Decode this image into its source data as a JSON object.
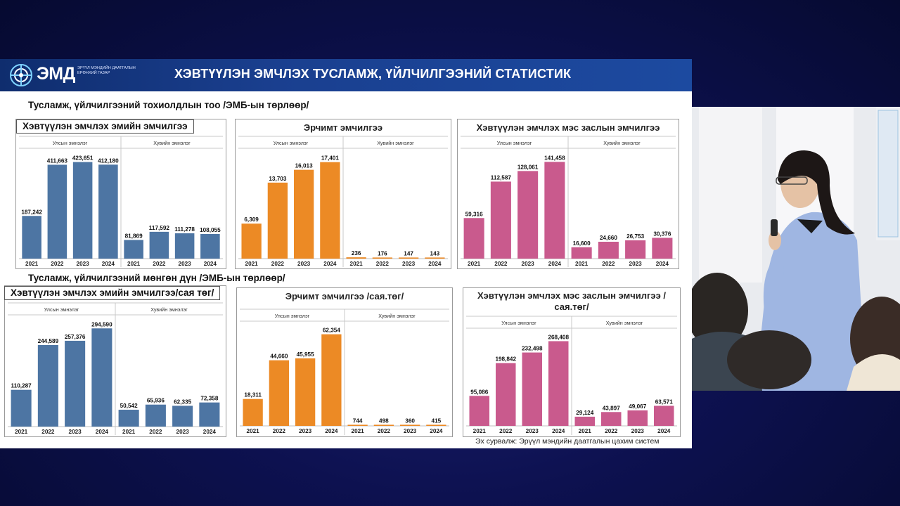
{
  "header": {
    "logo_abbr": "ЭМД",
    "logo_subtitle": "Эрүүл мэндийн даатгалын ерөнхий газар",
    "title": "ХЭВТҮҮЛЭН ЭМЧЛЭХ ТУСЛАМЖ, ҮЙЛЧИЛГЭЭНИЙ СТАТИСТИК"
  },
  "section1_label": "Тусламж, үйлчилгээний тохиолдлын тоо /ЭМБ-ын төрлөөр/",
  "section2_label": "Тусламж, үйлчилгээний мөнгөн дүн /ЭМБ-ын төрлөөр/",
  "source_note": "Эх сурвалж: Эрүүл мэндийн даатгалын цахим систем",
  "colors": {
    "blue": "#4d75a3",
    "orange": "#ec8a25",
    "pink": "#c95a8d",
    "header": "#163a86"
  },
  "chart_data": [
    {
      "type": "bar",
      "title": "Хэвтүүлэн эмчлэх эмийн эмчилгээ",
      "groups": [
        "Улсын эмнэлэг",
        "Хувийн эмнэлэг"
      ],
      "categories": [
        "2021",
        "2022",
        "2023",
        "2024"
      ],
      "series": [
        {
          "name": "Улсын эмнэлэг",
          "values": [
            187242,
            411663,
            423651,
            412180
          ],
          "labels": [
            "187,242",
            "411,663",
            "423,651",
            "412,180"
          ]
        },
        {
          "name": "Хувийн эмнэлэг",
          "values": [
            81869,
            117592,
            111278,
            108055
          ],
          "labels": [
            "81,869",
            "117,592",
            "111,278",
            "108,055"
          ]
        }
      ],
      "ylim": [
        0,
        450000
      ],
      "color": "#4d75a3"
    },
    {
      "type": "bar",
      "title": "Эрчимт эмчилгээ",
      "groups": [
        "Улсын эмнэлэг",
        "Хувийн эмнэлэг"
      ],
      "categories": [
        "2021",
        "2022",
        "2023",
        "2024"
      ],
      "series": [
        {
          "name": "Улсын эмнэлэг",
          "values": [
            6309,
            13703,
            16013,
            17401
          ],
          "labels": [
            "6,309",
            "13,703",
            "16,013",
            "17,401"
          ]
        },
        {
          "name": "Хувийн эмнэлэг",
          "values": [
            236,
            176,
            147,
            143
          ],
          "labels": [
            "236",
            "176",
            "147",
            "143"
          ]
        }
      ],
      "ylim": [
        0,
        18500
      ],
      "color": "#ec8a25"
    },
    {
      "type": "bar",
      "title": "Хэвтүүлэн эмчлэх мэс заслын эмчилгээ",
      "groups": [
        "Улсын эмнэлэг",
        "Хувийн эмнэлэг"
      ],
      "categories": [
        "2021",
        "2022",
        "2023",
        "2024"
      ],
      "series": [
        {
          "name": "Улсын эмнэлэг",
          "values": [
            59316,
            112587,
            128061,
            141458
          ],
          "labels": [
            "59,316",
            "112,587",
            "128,061",
            "141,458"
          ]
        },
        {
          "name": "Хувийн эмнэлэг",
          "values": [
            16600,
            24660,
            26753,
            30376
          ],
          "labels": [
            "16,600",
            "24,660",
            "26,753",
            "30,376"
          ]
        }
      ],
      "ylim": [
        0,
        150000
      ],
      "color": "#c95a8d"
    },
    {
      "type": "bar",
      "title": "Хэвтүүлэн эмчлэх эмийн эмчилгээ/сая төг/",
      "groups": [
        "Улсын эмнэлэг",
        "Хувийн эмнэлэг"
      ],
      "categories": [
        "2021",
        "2022",
        "2023",
        "2024"
      ],
      "series": [
        {
          "name": "Улсын эмнэлэг",
          "values": [
            110287,
            244589,
            257376,
            294590
          ],
          "labels": [
            "110,287",
            "244,589",
            "257,376",
            "294,590"
          ]
        },
        {
          "name": "Хувийн эмнэлэг",
          "values": [
            50542,
            65936,
            62335,
            72358
          ],
          "labels": [
            "50,542",
            "65,936",
            "62,335",
            "72,358"
          ]
        }
      ],
      "ylim": [
        0,
        312000
      ],
      "color": "#4d75a3"
    },
    {
      "type": "bar",
      "title": "Эрчимт эмчилгээ /сая.төг/",
      "groups": [
        "Улсын эмнэлэг",
        "Хувийн эмнэлэг"
      ],
      "categories": [
        "2021",
        "2022",
        "2023",
        "2024"
      ],
      "series": [
        {
          "name": "Улсын эмнэлэг",
          "values": [
            18311,
            44660,
            45955,
            62354
          ],
          "labels": [
            "18,311",
            "44,660",
            "45,955",
            "62,354"
          ]
        },
        {
          "name": "Хувийн эмнэлэг",
          "values": [
            744,
            498,
            360,
            415
          ],
          "labels": [
            "744",
            "498",
            "360",
            "415"
          ]
        }
      ],
      "ylim": [
        0,
        66000
      ],
      "color": "#ec8a25"
    },
    {
      "type": "bar",
      "title": "Хэвтүүлэн эмчлэх мэс заслын эмчилгээ /сая.төг/",
      "groups": [
        "Улсын эмнэлэг",
        "Хувийн эмнэлэг"
      ],
      "categories": [
        "2021",
        "2022",
        "2023",
        "2024"
      ],
      "series": [
        {
          "name": "Улсын эмнэлэг",
          "values": [
            95086,
            198842,
            232498,
            268408
          ],
          "labels": [
            "95,086",
            "198,842",
            "232,498",
            "268,408"
          ]
        },
        {
          "name": "Хувийн эмнэлэг",
          "values": [
            29124,
            43897,
            49067,
            63571
          ],
          "labels": [
            "29,124",
            "43,897",
            "49,067",
            "63,571"
          ]
        }
      ],
      "ylim": [
        0,
        285000
      ],
      "color": "#c95a8d"
    }
  ]
}
